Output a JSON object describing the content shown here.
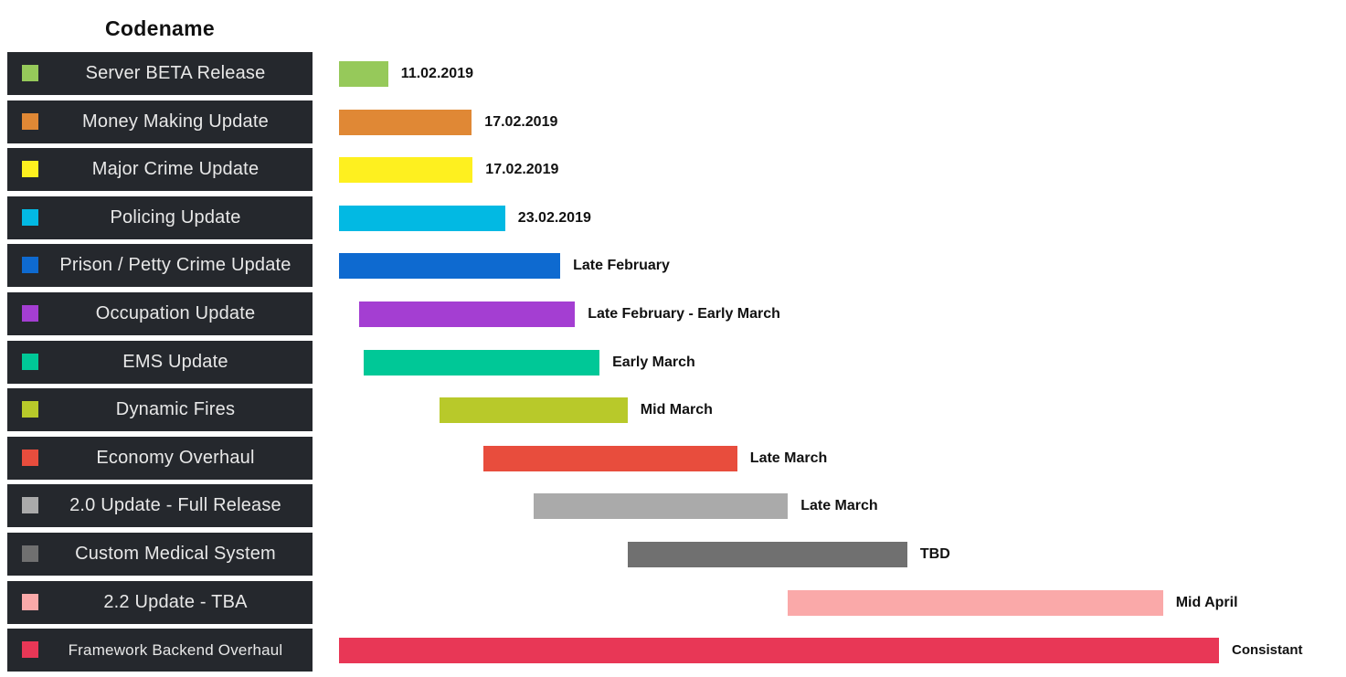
{
  "chart_data": {
    "type": "gantt",
    "column_header": "Codename",
    "rows": [
      {
        "name": "Server BETA Release",
        "color": "#96c95a",
        "start": 0.0,
        "end": 1.0,
        "label": "11.02.2019"
      },
      {
        "name": "Money Making Update",
        "color": "#e08835",
        "start": 0.0,
        "end": 2.7,
        "label": "17.02.2019"
      },
      {
        "name": "Major Crime Update",
        "color": "#fef01f",
        "start": 0.0,
        "end": 2.72,
        "label": "17.02.2019"
      },
      {
        "name": "Policing Update",
        "color": "#02b9e3",
        "start": 0.0,
        "end": 3.38,
        "label": "23.02.2019"
      },
      {
        "name": "Prison / Petty Crime Update",
        "color": "#0e6ad0",
        "start": 0.0,
        "end": 4.5,
        "label": "Late February"
      },
      {
        "name": "Occupation Update",
        "color": "#a43ed2",
        "start": 0.4,
        "end": 4.8,
        "label": "Late February - Early March"
      },
      {
        "name": "EMS Update",
        "color": "#00c897",
        "start": 0.5,
        "end": 5.3,
        "label": "Early March"
      },
      {
        "name": "Dynamic Fires",
        "color": "#b8c92a",
        "start": 2.05,
        "end": 5.87,
        "label": "Mid March"
      },
      {
        "name": "Economy Overhaul",
        "color": "#e84d3d",
        "start": 2.93,
        "end": 8.1,
        "label": "Late March"
      },
      {
        "name": "2.0 Update - Full Release",
        "color": "#aaaaaa",
        "start": 3.95,
        "end": 9.13,
        "label": "Late March"
      },
      {
        "name": "Custom Medical System",
        "color": "#707070",
        "start": 5.87,
        "end": 11.56,
        "label": "TBD"
      },
      {
        "name": "2.2 Update - TBA",
        "color": "#faa9a9",
        "start": 9.13,
        "end": 16.76,
        "label": "Mid April"
      },
      {
        "name": "Framework Backend Overhaul",
        "color": "#e83756",
        "start": 0.0,
        "end": 17.9,
        "label": "Consistant"
      }
    ]
  }
}
